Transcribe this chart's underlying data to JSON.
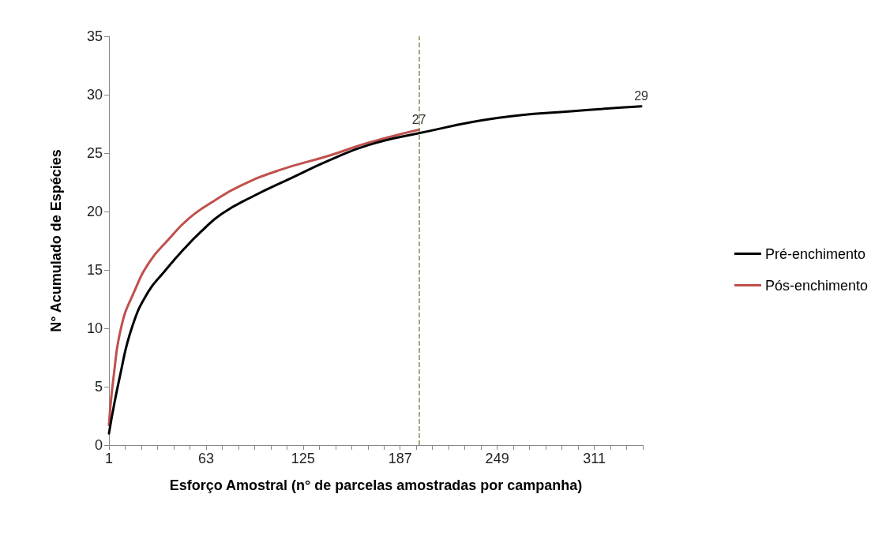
{
  "chart_data": {
    "type": "line",
    "xlabel": "Esforço Amostral (n° de parcelas amostradas por campanha)",
    "ylabel": "N° Acumulado de Espécies",
    "xlim": [
      1,
      342
    ],
    "xticks": [
      1,
      {
        "value": 11.33,
        "label": null
      },
      {
        "value": 21.67,
        "label": null
      },
      {
        "value": 32,
        "label": null
      },
      {
        "value": 42.33,
        "label": null
      },
      {
        "value": 52.67,
        "label": null
      },
      63,
      {
        "value": 73.33,
        "label": null
      },
      {
        "value": 83.67,
        "label": null
      },
      {
        "value": 94,
        "label": null
      },
      {
        "value": 104.33,
        "label": null
      },
      {
        "value": 114.67,
        "label": null
      },
      125,
      {
        "value": 135.33,
        "label": null
      },
      {
        "value": 145.67,
        "label": null
      },
      {
        "value": 156,
        "label": null
      },
      {
        "value": 166.33,
        "label": null
      },
      {
        "value": 176.67,
        "label": null
      },
      187,
      {
        "value": 197.33,
        "label": null
      },
      {
        "value": 207.67,
        "label": null
      },
      {
        "value": 218,
        "label": null
      },
      {
        "value": 228.33,
        "label": null
      },
      {
        "value": 238.67,
        "label": null
      },
      249,
      {
        "value": 259.33,
        "label": null
      },
      {
        "value": 269.67,
        "label": null
      },
      {
        "value": 280,
        "label": null
      },
      {
        "value": 290.33,
        "label": null
      },
      {
        "value": 300.67,
        "label": null
      },
      311,
      {
        "value": 321.33,
        "label": null
      },
      {
        "value": 331.67,
        "label": null
      },
      {
        "value": 342,
        "label": null
      }
    ],
    "ylim": [
      0,
      35
    ],
    "yticks": [
      0,
      5,
      10,
      15,
      20,
      25,
      30,
      35
    ],
    "series": [
      {
        "name": "Pré-enchimento",
        "color": "#000000",
        "x": [
          1,
          8,
          16,
          26,
          36,
          49,
          60,
          73,
          93,
          118,
          142,
          167,
          199,
          249,
          298,
          341
        ],
        "values": [
          1,
          5.9,
          10.2,
          13.1,
          14.8,
          16.8,
          18.3,
          19.8,
          21.3,
          22.9,
          24.4,
          25.7,
          26.7,
          28,
          28.6,
          29
        ],
        "value_labels": [
          null,
          null,
          null,
          null,
          null,
          null,
          null,
          null,
          null,
          null,
          null,
          null,
          null,
          null,
          null,
          "29"
        ]
      },
      {
        "name": "Pós-enchimento",
        "color": "#c0504d",
        "x": [
          1,
          4,
          9,
          17,
          27,
          39,
          52,
          68,
          85,
          109,
          142,
          167,
          199
        ],
        "values": [
          1.7,
          5.9,
          10.2,
          13.1,
          15.7,
          17.6,
          19.4,
          20.9,
          22.2,
          23.5,
          24.8,
          25.9,
          27
        ],
        "value_labels": [
          null,
          null,
          null,
          null,
          null,
          null,
          null,
          null,
          null,
          null,
          null,
          null,
          "27"
        ]
      }
    ],
    "ref_lines": [
      {
        "axis": "x",
        "value": 199,
        "color": "#8c8c5a",
        "line_style": "dashed"
      }
    ],
    "grid": false,
    "legend": "right",
    "marker": "none",
    "line_style": "solid"
  }
}
